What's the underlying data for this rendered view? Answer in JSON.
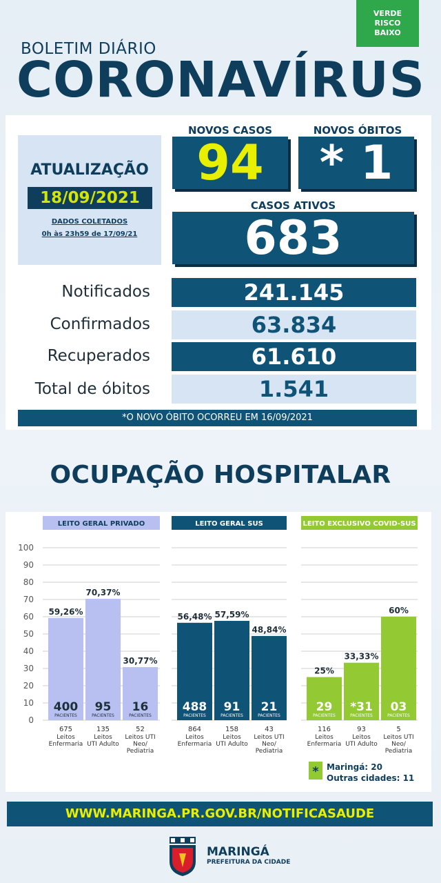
{
  "risk": {
    "line1": "VERDE",
    "line2": "RISCO",
    "line3": "BAIXO"
  },
  "header": {
    "kicker": "BOLETIM DIÁRIO",
    "title": "CORONAVÍRUS"
  },
  "update": {
    "title": "ATUALIZAÇÃO",
    "date": "18/09/2021",
    "note_line1": "DADOS COLETADOS",
    "note_line2": "0h às 23h59 de 17/09/21"
  },
  "new_cases": {
    "label": "NOVOS CASOS",
    "value": "94"
  },
  "new_deaths": {
    "label": "NOVOS ÓBITOS",
    "value": "* 1"
  },
  "active_cases": {
    "label": "CASOS ATIVOS",
    "value": "683"
  },
  "totals": [
    {
      "label": "Notificados",
      "value": "241.145"
    },
    {
      "label": "Confirmados",
      "value": "63.834"
    },
    {
      "label": "Recuperados",
      "value": "61.610"
    },
    {
      "label": "Total de óbitos",
      "value": "1.541"
    }
  ],
  "footnote": "*O NOVO ÓBITO OCORREU EM 16/09/2021",
  "occupancy_title": "OCUPAÇÃO HOSPITALAR",
  "chart_data": {
    "type": "bar",
    "ylim": [
      0,
      100
    ],
    "yticks": [
      "100",
      "90",
      "80",
      "70",
      "60",
      "50",
      "40",
      "30",
      "20",
      "10",
      "0"
    ],
    "groups": [
      {
        "name": "LEITO GERAL PRIVADO",
        "color": "#b7c0f0",
        "header_color": "#b7c0f0",
        "header_text_color": "#0f3d5c",
        "bars": [
          {
            "value": 59.26,
            "label": "59,26%",
            "patients": "400",
            "patients_label": "PACIENTES",
            "beds": "675",
            "cat_line1": "Leitos",
            "cat_line2": "Enfermaria",
            "cat_line3": ""
          },
          {
            "value": 70.37,
            "label": "70,37%",
            "patients": "95",
            "patients_label": "PACIENTES",
            "beds": "135",
            "cat_line1": "Leitos",
            "cat_line2": "UTI Adulto",
            "cat_line3": ""
          },
          {
            "value": 30.77,
            "label": "30,77%",
            "patients": "16",
            "patients_label": "PACIENTES",
            "beds": "52",
            "cat_line1": "Leitos UTI",
            "cat_line2": "Neo/",
            "cat_line3": "Pediatria"
          }
        ]
      },
      {
        "name": "LEITO GERAL SUS",
        "color": "#0f5377",
        "header_color": "#0f5377",
        "header_text_color": "#ffffff",
        "bars": [
          {
            "value": 56.48,
            "label": "56,48%",
            "patients": "488",
            "patients_label": "PACIENTES",
            "beds": "864",
            "cat_line1": "Leitos",
            "cat_line2": "Enfermaria",
            "cat_line3": ""
          },
          {
            "value": 57.59,
            "label": "57,59%",
            "patients": "91",
            "patients_label": "PACIENTES",
            "beds": "158",
            "cat_line1": "Leitos",
            "cat_line2": "UTI Adulto",
            "cat_line3": ""
          },
          {
            "value": 48.84,
            "label": "48,84%",
            "patients": "21",
            "patients_label": "PACIENTES",
            "beds": "43",
            "cat_line1": "Leitos UTI",
            "cat_line2": "Neo/",
            "cat_line3": "Pediatria"
          }
        ]
      },
      {
        "name": "LEITO EXCLUSIVO COVID-SUS",
        "color": "#93c933",
        "header_color": "#93c933",
        "header_text_color": "#ffffff",
        "bars": [
          {
            "value": 25,
            "label": "25%",
            "patients": "29",
            "patients_label": "PACIENTES",
            "beds": "116",
            "cat_line1": "Leitos",
            "cat_line2": "Enfermaria",
            "cat_line3": ""
          },
          {
            "value": 33.33,
            "label": "33,33%",
            "patients": "*31",
            "patients_label": "PACIENTES",
            "beds": "93",
            "cat_line1": "Leitos",
            "cat_line2": "UTI Adulto",
            "cat_line3": ""
          },
          {
            "value": 60,
            "label": "60%",
            "patients": "03",
            "patients_label": "PACIENTES",
            "beds": "5",
            "cat_line1": "Leitos UTI",
            "cat_line2": "Neo/",
            "cat_line3": "Pediatria"
          }
        ]
      }
    ],
    "legend": {
      "marker": "*",
      "line1": "Maringá: 20",
      "line2": "Outras cidades: 11"
    }
  },
  "footer": {
    "url": "WWW.MARINGA.PR.GOV.BR/NOTIFICASAUDE"
  },
  "logo": {
    "name": "MARINGÁ",
    "subtitle": "PREFEITURA DA CIDADE"
  }
}
